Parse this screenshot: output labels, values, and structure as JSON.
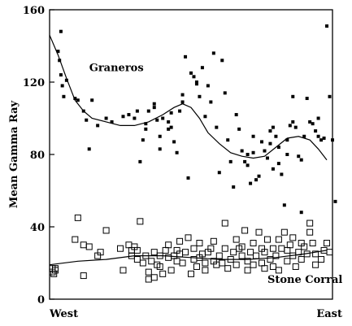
{
  "chart_data": {
    "type": "scatter",
    "title": "",
    "xlabel": "",
    "ylabel": "Mean Gamma Ray",
    "xlim": [
      0,
      100
    ],
    "ylim": [
      0,
      160
    ],
    "x_tick_labels": [
      {
        "x": 0,
        "label": "West"
      },
      {
        "x": 100,
        "label": "East"
      }
    ],
    "y_ticks": [
      0,
      40,
      80,
      120,
      160
    ],
    "grid": false,
    "legend": "none",
    "annotations": [
      {
        "text": "Graneros",
        "x": 14,
        "y": 126
      },
      {
        "text": "Stone Corral",
        "x": 77,
        "y": 9
      }
    ],
    "series": [
      {
        "name": "Graneros",
        "marker": "filled-square",
        "points": [
          [
            3,
            137
          ],
          [
            3.5,
            132
          ],
          [
            4,
            148
          ],
          [
            4,
            124
          ],
          [
            4.5,
            118
          ],
          [
            5,
            112
          ],
          [
            6,
            121
          ],
          [
            9,
            111
          ],
          [
            10,
            110
          ],
          [
            12,
            104
          ],
          [
            13,
            99
          ],
          [
            14,
            83
          ],
          [
            15,
            110
          ],
          [
            17,
            96
          ],
          [
            20,
            100
          ],
          [
            22,
            98
          ],
          [
            26,
            101
          ],
          [
            28,
            102
          ],
          [
            30,
            100
          ],
          [
            31,
            104
          ],
          [
            32,
            76
          ],
          [
            33,
            88
          ],
          [
            34,
            94
          ],
          [
            34,
            97
          ],
          [
            35,
            104
          ],
          [
            37,
            106
          ],
          [
            37,
            108
          ],
          [
            38,
            99
          ],
          [
            39,
            90
          ],
          [
            39,
            83
          ],
          [
            40,
            100
          ],
          [
            42,
            98
          ],
          [
            42,
            94
          ],
          [
            43,
            103
          ],
          [
            43,
            95
          ],
          [
            44,
            87
          ],
          [
            45,
            81
          ],
          [
            46,
            104
          ],
          [
            47,
            109
          ],
          [
            47,
            113
          ],
          [
            48,
            134
          ],
          [
            49,
            67
          ],
          [
            50,
            125
          ],
          [
            51,
            123
          ],
          [
            52,
            120
          ],
          [
            52,
            119
          ],
          [
            53,
            112
          ],
          [
            54,
            128
          ],
          [
            55,
            101
          ],
          [
            56,
            118
          ],
          [
            57,
            109
          ],
          [
            58,
            136
          ],
          [
            59,
            95
          ],
          [
            60,
            70
          ],
          [
            61,
            132
          ],
          [
            62,
            114
          ],
          [
            63,
            88
          ],
          [
            64,
            76
          ],
          [
            65,
            62
          ],
          [
            66,
            102
          ],
          [
            67,
            94
          ],
          [
            68,
            82
          ],
          [
            69,
            76
          ],
          [
            70,
            74
          ],
          [
            70,
            80
          ],
          [
            71,
            64
          ],
          [
            72,
            90
          ],
          [
            72,
            81
          ],
          [
            73,
            66
          ],
          [
            74,
            68
          ],
          [
            75,
            87
          ],
          [
            76,
            82
          ],
          [
            77,
            78
          ],
          [
            78,
            86
          ],
          [
            78,
            93
          ],
          [
            79,
            95
          ],
          [
            79,
            72
          ],
          [
            80,
            90
          ],
          [
            81,
            84
          ],
          [
            81,
            75
          ],
          [
            82,
            69
          ],
          [
            83,
            52
          ],
          [
            84,
            88
          ],
          [
            84,
            80
          ],
          [
            85,
            96
          ],
          [
            86,
            98
          ],
          [
            86,
            112
          ],
          [
            87,
            95
          ],
          [
            88,
            79
          ],
          [
            89,
            48
          ],
          [
            89,
            77
          ],
          [
            90,
            90
          ],
          [
            91,
            111
          ],
          [
            92,
            98
          ],
          [
            93,
            97
          ],
          [
            94,
            93
          ],
          [
            95,
            100
          ],
          [
            95,
            90
          ],
          [
            96,
            88
          ],
          [
            97,
            89
          ],
          [
            98,
            151
          ],
          [
            99,
            112
          ],
          [
            100,
            88
          ],
          [
            101,
            54
          ]
        ]
      },
      {
        "name": "Stone Corral",
        "marker": "open-square",
        "points": [
          [
            1,
            17
          ],
          [
            1,
            15
          ],
          [
            1.5,
            14
          ],
          [
            2,
            16
          ],
          [
            2,
            17
          ],
          [
            9,
            33
          ],
          [
            10,
            45
          ],
          [
            12,
            30
          ],
          [
            12,
            13
          ],
          [
            14,
            29
          ],
          [
            17,
            24
          ],
          [
            18,
            26
          ],
          [
            20,
            38
          ],
          [
            25,
            28
          ],
          [
            26,
            16
          ],
          [
            28,
            30
          ],
          [
            29,
            27
          ],
          [
            29,
            24
          ],
          [
            30,
            29
          ],
          [
            31,
            27
          ],
          [
            31,
            22
          ],
          [
            32,
            43
          ],
          [
            33,
            20
          ],
          [
            34,
            24
          ],
          [
            35,
            11
          ],
          [
            35,
            15
          ],
          [
            36,
            21
          ],
          [
            37,
            12
          ],
          [
            37,
            26
          ],
          [
            38,
            19
          ],
          [
            39,
            18
          ],
          [
            39,
            24
          ],
          [
            40,
            14
          ],
          [
            41,
            27
          ],
          [
            42,
            23
          ],
          [
            42,
            30
          ],
          [
            43,
            16
          ],
          [
            44,
            24
          ],
          [
            45,
            21
          ],
          [
            45,
            27
          ],
          [
            46,
            25
          ],
          [
            46,
            32
          ],
          [
            47,
            20
          ],
          [
            48,
            26
          ],
          [
            49,
            34
          ],
          [
            50,
            14
          ],
          [
            51,
            22
          ],
          [
            51,
            28
          ],
          [
            52,
            18
          ],
          [
            53,
            23
          ],
          [
            53,
            31
          ],
          [
            54,
            25
          ],
          [
            55,
            20
          ],
          [
            55,
            16
          ],
          [
            56,
            26
          ],
          [
            57,
            28
          ],
          [
            58,
            21
          ],
          [
            58,
            32
          ],
          [
            59,
            19
          ],
          [
            60,
            24
          ],
          [
            61,
            20
          ],
          [
            62,
            42
          ],
          [
            62,
            28
          ],
          [
            63,
            17
          ],
          [
            64,
            22
          ],
          [
            65,
            26
          ],
          [
            66,
            33
          ],
          [
            66,
            19
          ],
          [
            67,
            28
          ],
          [
            68,
            24
          ],
          [
            68,
            29
          ],
          [
            69,
            38
          ],
          [
            70,
            21
          ],
          [
            70,
            16
          ],
          [
            71,
            26
          ],
          [
            72,
            19
          ],
          [
            72,
            31
          ],
          [
            73,
            24
          ],
          [
            74,
            37
          ],
          [
            75,
            28
          ],
          [
            75,
            20
          ],
          [
            76,
            17
          ],
          [
            76,
            26
          ],
          [
            77,
            33
          ],
          [
            78,
            22
          ],
          [
            79,
            18
          ],
          [
            79,
            28
          ],
          [
            80,
            24
          ],
          [
            81,
            33
          ],
          [
            81,
            16
          ],
          [
            82,
            28
          ],
          [
            83,
            37
          ],
          [
            84,
            21
          ],
          [
            84,
            27
          ],
          [
            85,
            30
          ],
          [
            86,
            24
          ],
          [
            86,
            34
          ],
          [
            87,
            18
          ],
          [
            88,
            26
          ],
          [
            89,
            31
          ],
          [
            89,
            22
          ],
          [
            90,
            29
          ],
          [
            91,
            25
          ],
          [
            92,
            37
          ],
          [
            92,
            42
          ],
          [
            93,
            31
          ],
          [
            94,
            19
          ],
          [
            94,
            25
          ],
          [
            96,
            22
          ],
          [
            97,
            27
          ],
          [
            98,
            31
          ],
          [
            99,
            26
          ]
        ]
      }
    ],
    "trend_lines": [
      {
        "series": "Graneros",
        "points": [
          [
            0,
            146
          ],
          [
            3,
            135
          ],
          [
            6,
            122
          ],
          [
            9,
            110
          ],
          [
            12,
            104
          ],
          [
            15,
            100
          ],
          [
            20,
            98
          ],
          [
            25,
            96
          ],
          [
            30,
            96
          ],
          [
            35,
            98
          ],
          [
            40,
            102
          ],
          [
            44,
            106
          ],
          [
            47,
            108
          ],
          [
            50,
            106
          ],
          [
            53,
            100
          ],
          [
            56,
            92
          ],
          [
            60,
            86
          ],
          [
            64,
            81
          ],
          [
            68,
            79
          ],
          [
            72,
            78
          ],
          [
            76,
            79
          ],
          [
            80,
            84
          ],
          [
            84,
            89
          ],
          [
            88,
            90
          ],
          [
            92,
            88
          ],
          [
            95,
            83
          ],
          [
            98,
            77
          ]
        ]
      },
      {
        "series": "Stone Corral",
        "points": [
          [
            0,
            19
          ],
          [
            10,
            21
          ],
          [
            20,
            22
          ],
          [
            30,
            24
          ],
          [
            40,
            24
          ],
          [
            50,
            23
          ],
          [
            60,
            22
          ],
          [
            70,
            22
          ],
          [
            80,
            23
          ],
          [
            90,
            25
          ],
          [
            98,
            27
          ]
        ]
      }
    ]
  }
}
